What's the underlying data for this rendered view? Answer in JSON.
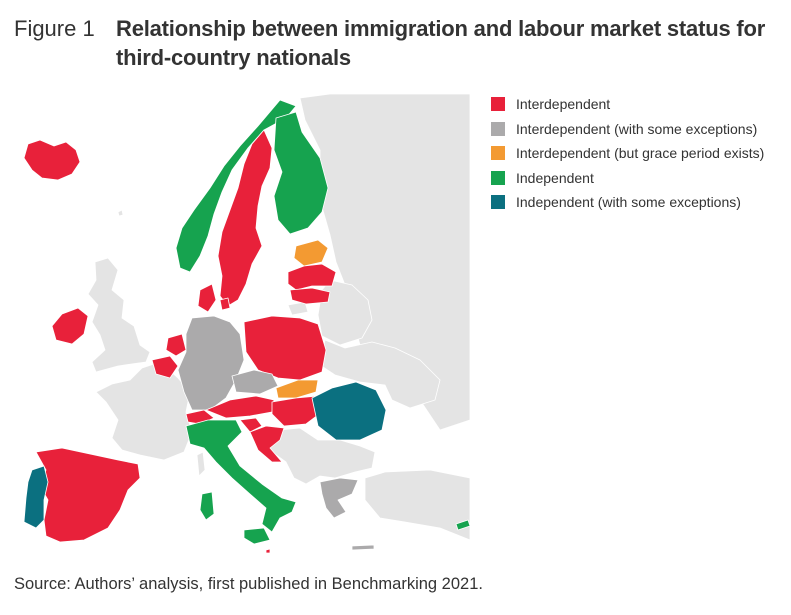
{
  "figure": {
    "label": "Figure 1",
    "title": "Relationship between immigration and labour market status for third-country nationals"
  },
  "source": "Source: Authors’ analysis, first published in Benchmarking 2021.",
  "colors": {
    "interdependent": "#e8213a",
    "interdependent_exceptions": "#abaaab",
    "grace_period": "#f39a32",
    "independent": "#16a34f",
    "independent_exceptions": "#0b7080",
    "non_eu": "#e4e4e4",
    "border": "#ffffff"
  },
  "legend": [
    {
      "key": "interdependent",
      "label": "Interdependent",
      "color": "#e8213a"
    },
    {
      "key": "interdependent_exceptions",
      "label": "Interdependent (with some exceptions)",
      "color": "#abaaab"
    },
    {
      "key": "grace_period",
      "label": "Interdependent (but grace period exists)",
      "color": "#f39a32"
    },
    {
      "key": "independent",
      "label": "Independent",
      "color": "#16a34f"
    },
    {
      "key": "independent_exceptions",
      "label": "Independent (with some exceptions)",
      "color": "#0b7080"
    }
  ],
  "countries": [
    {
      "name": "Iceland",
      "category": "interdependent"
    },
    {
      "name": "Norway",
      "category": "independent"
    },
    {
      "name": "Sweden",
      "category": "interdependent"
    },
    {
      "name": "Finland",
      "category": "independent"
    },
    {
      "name": "Estonia",
      "category": "grace_period"
    },
    {
      "name": "Latvia",
      "category": "interdependent"
    },
    {
      "name": "Lithuania",
      "category": "interdependent"
    },
    {
      "name": "Denmark",
      "category": "interdependent"
    },
    {
      "name": "Ireland",
      "category": "interdependent"
    },
    {
      "name": "Netherlands",
      "category": "interdependent"
    },
    {
      "name": "Belgium",
      "category": "interdependent"
    },
    {
      "name": "Luxembourg",
      "category": "interdependent"
    },
    {
      "name": "Germany",
      "category": "interdependent_exceptions"
    },
    {
      "name": "Poland",
      "category": "interdependent"
    },
    {
      "name": "Czechia",
      "category": "interdependent_exceptions"
    },
    {
      "name": "Slovakia",
      "category": "grace_period"
    },
    {
      "name": "Austria",
      "category": "interdependent"
    },
    {
      "name": "Hungary",
      "category": "interdependent"
    },
    {
      "name": "Slovenia",
      "category": "interdependent"
    },
    {
      "name": "Croatia",
      "category": "interdependent"
    },
    {
      "name": "Romania",
      "category": "independent_exceptions"
    },
    {
      "name": "Switzerland",
      "category": "interdependent"
    },
    {
      "name": "Italy",
      "category": "independent"
    },
    {
      "name": "Spain",
      "category": "interdependent"
    },
    {
      "name": "Portugal",
      "category": "independent_exceptions"
    },
    {
      "name": "Greece",
      "category": "interdependent_exceptions"
    },
    {
      "name": "Cyprus",
      "category": "independent"
    },
    {
      "name": "Malta",
      "category": "interdependent"
    }
  ]
}
